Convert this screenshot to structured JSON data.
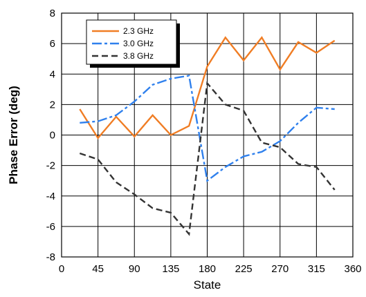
{
  "chart_data": {
    "type": "line",
    "title": "",
    "xlabel": "State",
    "ylabel": "Phase Error (deg)",
    "xlim": [
      0,
      360
    ],
    "ylim": [
      -8,
      8
    ],
    "x_ticks": [
      0,
      45,
      90,
      135,
      180,
      225,
      270,
      315,
      360
    ],
    "y_ticks": [
      -8,
      -6,
      -4,
      -2,
      0,
      2,
      4,
      6,
      8
    ],
    "x_tick_labels": [
      "0",
      "45",
      "90",
      "135",
      "180",
      "225",
      "270",
      "315",
      "360"
    ],
    "y_tick_labels": [
      "-8",
      "-6",
      "-4",
      "-2",
      "0",
      "2",
      "4",
      "6",
      "8"
    ],
    "grid": true,
    "legend_position": "top-left",
    "series": [
      {
        "name": "2.3 GHz",
        "color": "#f07d24",
        "dash": "solid",
        "x": [
          22.5,
          45,
          67.5,
          90,
          112.5,
          135,
          157.5,
          180,
          202.5,
          225,
          247.5,
          270,
          292.5,
          315,
          337.5
        ],
        "y": [
          1.7,
          -0.2,
          1.2,
          -0.1,
          1.3,
          0.0,
          0.6,
          4.5,
          6.4,
          4.9,
          6.4,
          4.3,
          6.1,
          5.4,
          6.2
        ]
      },
      {
        "name": "3.0 GHz",
        "color": "#2f80ed",
        "dash": "long-dash-dot",
        "x": [
          22.5,
          45,
          67.5,
          90,
          112.5,
          135,
          157.5,
          180,
          202.5,
          225,
          247.5,
          270,
          292.5,
          315,
          337.5
        ],
        "y": [
          0.8,
          0.9,
          1.3,
          2.2,
          3.3,
          3.7,
          3.9,
          -3.0,
          -2.1,
          -1.4,
          -1.1,
          -0.4,
          0.8,
          1.8,
          1.7
        ]
      },
      {
        "name": "3.8 GHz",
        "color": "#333333",
        "dash": "dash",
        "x": [
          22.5,
          45,
          67.5,
          90,
          112.5,
          135,
          157.5,
          180,
          202.5,
          225,
          247.5,
          270,
          292.5,
          315,
          337.5
        ],
        "y": [
          -1.2,
          -1.6,
          -3.1,
          -3.9,
          -4.8,
          -5.1,
          -6.5,
          3.4,
          2.0,
          1.6,
          -0.5,
          -0.8,
          -1.9,
          -2.1,
          -3.6
        ]
      }
    ]
  }
}
